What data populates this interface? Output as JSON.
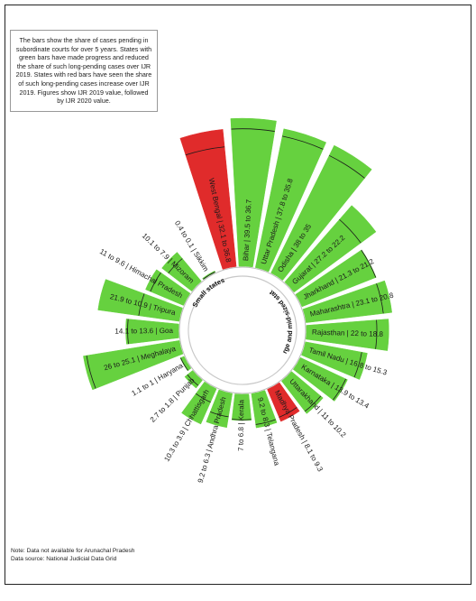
{
  "chart_data": {
    "type": "bar",
    "polar": true,
    "colors": {
      "improved": "#66d13f",
      "worsened": "#e02b2b"
    },
    "groups": [
      "Small states",
      "Large and mid-sized states"
    ],
    "bars": [
      {
        "label": "West Bengal  |  32.1 to 36.8",
        "state": "West Bengal",
        "iJR2019": 32.1,
        "iJR2020": 36.8,
        "status": "worsened",
        "group": "Large and mid-sized states"
      },
      {
        "label": "Bihar  |  39.5 to 36.7",
        "state": "Bihar",
        "iJR2019": 39.5,
        "iJR2020": 36.7,
        "status": "improved",
        "group": "Large and mid-sized states"
      },
      {
        "label": "Uttar Pradesh  |  37.8 to 35.8",
        "state": "Uttar Pradesh",
        "iJR2019": 37.8,
        "iJR2020": 35.8,
        "status": "improved",
        "group": "Large and mid-sized states"
      },
      {
        "label": "Odisha  |  38 to 35",
        "state": "Odisha",
        "iJR2019": 38,
        "iJR2020": 35,
        "status": "improved",
        "group": "Large and mid-sized states"
      },
      {
        "label": "Gujarat  |  27.2 to 22.2",
        "state": "Gujarat",
        "iJR2019": 27.2,
        "iJR2020": 22.2,
        "status": "improved",
        "group": "Large and mid-sized states"
      },
      {
        "label": "Jharkhand  |  21.3 to 21.2",
        "state": "Jharkhand",
        "iJR2019": 21.3,
        "iJR2020": 21.2,
        "status": "improved",
        "group": "Large and mid-sized states"
      },
      {
        "label": "Maharashtra  |  23.1 to 20.8",
        "state": "Maharashtra",
        "iJR2019": 23.1,
        "iJR2020": 20.8,
        "status": "improved",
        "group": "Large and mid-sized states"
      },
      {
        "label": "Rajasthan  |  22 to 18.8",
        "state": "Rajasthan",
        "iJR2019": 22,
        "iJR2020": 18.8,
        "status": "improved",
        "group": "Large and mid-sized states"
      },
      {
        "label": "Tamil Nadu  |  16.8 to 15.3",
        "state": "Tamil Nadu",
        "iJR2019": 16.8,
        "iJR2020": 15.3,
        "status": "improved",
        "group": "Large and mid-sized states"
      },
      {
        "label": "Karnataka  |  13.9 to 13.4",
        "state": "Karnataka",
        "iJR2019": 13.9,
        "iJR2020": 13.4,
        "status": "improved",
        "group": "Large and mid-sized states"
      },
      {
        "label": "Uttarakhand  |  11 to 10.2",
        "state": "Uttarakhand",
        "iJR2019": 11,
        "iJR2020": 10.2,
        "status": "improved",
        "group": "Large and mid-sized states"
      },
      {
        "label": "Madhya Pradesh  |  8.1 to 9.3",
        "state": "Madhya Pradesh",
        "iJR2019": 8.1,
        "iJR2020": 9.3,
        "status": "worsened",
        "group": "Large and mid-sized states"
      },
      {
        "label": "9.2 to 8.3  |  Telangana",
        "state": "Telangana",
        "iJR2019": 9.2,
        "iJR2020": 8.3,
        "status": "improved",
        "group": "Large and mid-sized states"
      },
      {
        "label": "7 to 6.8  |  Kerala",
        "state": "Kerala",
        "iJR2019": 7,
        "iJR2020": 6.8,
        "status": "improved",
        "group": "Large and mid-sized states"
      },
      {
        "label": "9.2 to 6.3  |  Andhra Pradesh",
        "state": "Andhra Pradesh",
        "iJR2019": 9.2,
        "iJR2020": 6.3,
        "status": "improved",
        "group": "Large and mid-sized states"
      },
      {
        "label": "10.3 to 3.9  |  Chhattisgarh",
        "state": "Chhattisgarh",
        "iJR2019": 10.3,
        "iJR2020": 3.9,
        "status": "improved",
        "group": "Large and mid-sized states"
      },
      {
        "label": "2.7 to 1.8  |  Punjab",
        "state": "Punjab",
        "iJR2019": 2.7,
        "iJR2020": 1.8,
        "status": "improved",
        "group": "Large and mid-sized states"
      },
      {
        "label": "1.1 to 1  |  Haryana",
        "state": "Haryana",
        "iJR2019": 1.1,
        "iJR2020": 1,
        "status": "improved",
        "group": "Large and mid-sized states"
      },
      {
        "label": "26 to 25.1  |  Meghalaya",
        "state": "Meghalaya",
        "iJR2019": 26,
        "iJR2020": 25.1,
        "status": "improved",
        "group": "Small states"
      },
      {
        "label": "14.1 to 13.6  |  Goa",
        "state": "Goa",
        "iJR2019": 14.1,
        "iJR2020": 13.6,
        "status": "improved",
        "group": "Small states"
      },
      {
        "label": "21.9 to 10.9  |  Tripura",
        "state": "Tripura",
        "iJR2019": 21.9,
        "iJR2020": 10.9,
        "status": "improved",
        "group": "Small states"
      },
      {
        "label": "11 to 9.6  |  Himachal Pradesh",
        "state": "Himachal Pradesh",
        "iJR2019": 11,
        "iJR2020": 9.6,
        "status": "improved",
        "group": "Small states"
      },
      {
        "label": "10.1 to 7.9  |  Mizoram",
        "state": "Mizoram",
        "iJR2019": 10.1,
        "iJR2020": 7.9,
        "status": "improved",
        "group": "Small states"
      },
      {
        "label": "0.4 to 0.1  |  Sikkim",
        "state": "Sikkim",
        "iJR2019": 0.4,
        "iJR2020": 0.1,
        "status": "improved",
        "group": "Small states"
      }
    ]
  },
  "legend_text": "The bars show the share of cases pending in subordinate courts for over 5 years. States with green bars have made progress and reduced the share of such long-pending cases over IJR 2019. States with red bars have seen the share of such long-pending cases increase over IJR 2019. Figures show IJR 2019 value, followed by IJR 2020 value.",
  "footer": {
    "note": "Note: Data not available for Arunachal Pradesh",
    "source": "Data source: National Judicial Data Grid"
  }
}
